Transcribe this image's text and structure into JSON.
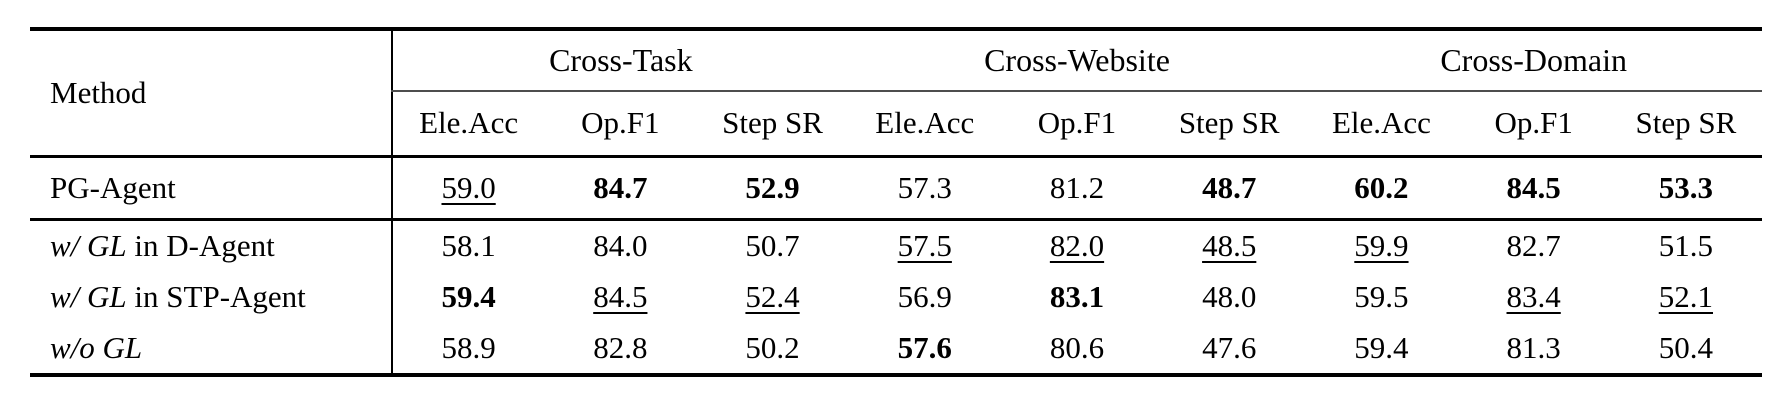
{
  "colors": {
    "background": "#ffffff",
    "text": "#000000",
    "rule_heavy": "#000000",
    "rule_light": "#4d4d4d"
  },
  "table": {
    "method_header": "Method",
    "groups": [
      {
        "label": "Cross-Task"
      },
      {
        "label": "Cross-Website"
      },
      {
        "label": "Cross-Domain"
      }
    ],
    "metric_headers": [
      "Ele.Acc",
      "Op.F1",
      "Step SR",
      "Ele.Acc",
      "Op.F1",
      "Step SR",
      "Ele.Acc",
      "Op.F1",
      "Step SR"
    ],
    "sections": [
      {
        "rows": [
          {
            "method": [
              {
                "t": "PG-Agent",
                "i": false
              }
            ],
            "values": [
              {
                "v": "59.0",
                "s": "u"
              },
              {
                "v": "84.7",
                "s": "b"
              },
              {
                "v": "52.9",
                "s": "b"
              },
              {
                "v": "57.3",
                "s": "p"
              },
              {
                "v": "81.2",
                "s": "p"
              },
              {
                "v": "48.7",
                "s": "b"
              },
              {
                "v": "60.2",
                "s": "b"
              },
              {
                "v": "84.5",
                "s": "b"
              },
              {
                "v": "53.3",
                "s": "b"
              }
            ]
          }
        ]
      },
      {
        "rows": [
          {
            "method": [
              {
                "t": "w/ GL",
                "i": true
              },
              {
                "t": " in D-Agent",
                "i": false
              }
            ],
            "values": [
              {
                "v": "58.1",
                "s": "p"
              },
              {
                "v": "84.0",
                "s": "p"
              },
              {
                "v": "50.7",
                "s": "p"
              },
              {
                "v": "57.5",
                "s": "u"
              },
              {
                "v": "82.0",
                "s": "u"
              },
              {
                "v": "48.5",
                "s": "u"
              },
              {
                "v": "59.9",
                "s": "u"
              },
              {
                "v": "82.7",
                "s": "p"
              },
              {
                "v": "51.5",
                "s": "p"
              }
            ]
          },
          {
            "method": [
              {
                "t": "w/ GL",
                "i": true
              },
              {
                "t": " in STP-Agent",
                "i": false
              }
            ],
            "values": [
              {
                "v": "59.4",
                "s": "b"
              },
              {
                "v": "84.5",
                "s": "u"
              },
              {
                "v": "52.4",
                "s": "u"
              },
              {
                "v": "56.9",
                "s": "p"
              },
              {
                "v": "83.1",
                "s": "b"
              },
              {
                "v": "48.0",
                "s": "p"
              },
              {
                "v": "59.5",
                "s": "p"
              },
              {
                "v": "83.4",
                "s": "u"
              },
              {
                "v": "52.1",
                "s": "u"
              }
            ]
          },
          {
            "method": [
              {
                "t": "w/o GL",
                "i": true
              }
            ],
            "values": [
              {
                "v": "58.9",
                "s": "p"
              },
              {
                "v": "82.8",
                "s": "p"
              },
              {
                "v": "50.2",
                "s": "p"
              },
              {
                "v": "57.6",
                "s": "b"
              },
              {
                "v": "80.6",
                "s": "p"
              },
              {
                "v": "47.6",
                "s": "p"
              },
              {
                "v": "59.4",
                "s": "p"
              },
              {
                "v": "81.3",
                "s": "p"
              },
              {
                "v": "50.4",
                "s": "p"
              }
            ]
          }
        ]
      }
    ]
  }
}
